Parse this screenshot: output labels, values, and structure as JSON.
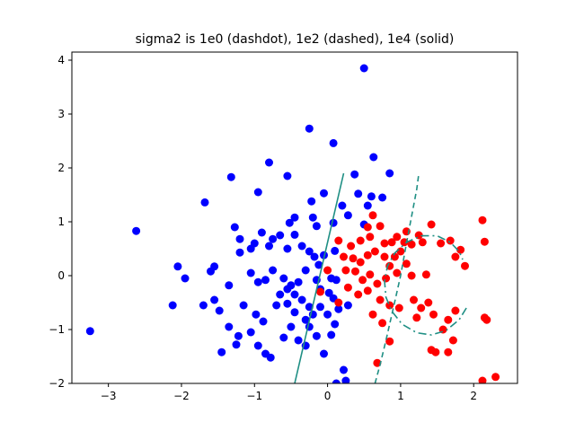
{
  "chart_data": {
    "type": "scatter",
    "title": "sigma2 is 1e0 (dashdot), 1e2 (dashed), 1e4 (solid)",
    "xlabel": "",
    "ylabel": "",
    "xlim": [
      -3.5,
      2.6
    ],
    "ylim": [
      -2.0,
      4.15
    ],
    "x_ticks": [
      -3,
      -2,
      -1,
      0,
      1,
      2
    ],
    "y_ticks": [
      -2,
      -1,
      0,
      1,
      2,
      3,
      4
    ],
    "grid": false,
    "series": [
      {
        "color": "#0000ff",
        "points": [
          [
            0.5,
            3.85
          ],
          [
            -0.25,
            2.73
          ],
          [
            0.08,
            2.46
          ],
          [
            0.63,
            2.2
          ],
          [
            -0.8,
            2.1
          ],
          [
            -0.55,
            1.85
          ],
          [
            0.37,
            1.88
          ],
          [
            0.85,
            1.9
          ],
          [
            -1.32,
            1.83
          ],
          [
            -0.95,
            1.55
          ],
          [
            -1.68,
            1.36
          ],
          [
            0.2,
            1.3
          ],
          [
            0.55,
            1.3
          ],
          [
            0.42,
            1.52
          ],
          [
            0.6,
            1.47
          ],
          [
            0.75,
            1.45
          ],
          [
            -0.05,
            1.53
          ],
          [
            -0.22,
            1.38
          ],
          [
            0.28,
            1.12
          ],
          [
            0.08,
            0.98
          ],
          [
            -0.2,
            1.08
          ],
          [
            -0.45,
            1.08
          ],
          [
            -0.52,
            0.98
          ],
          [
            -0.15,
            0.92
          ],
          [
            0.5,
            0.95
          ],
          [
            -1.27,
            0.9
          ],
          [
            -0.9,
            0.8
          ],
          [
            -0.65,
            0.75
          ],
          [
            -0.45,
            0.76
          ],
          [
            -0.75,
            0.68
          ],
          [
            -1.2,
            0.68
          ],
          [
            -1.0,
            0.6
          ],
          [
            -1.05,
            0.5
          ],
          [
            -1.2,
            0.43
          ],
          [
            -0.8,
            0.55
          ],
          [
            -0.55,
            0.5
          ],
          [
            -0.35,
            0.55
          ],
          [
            -0.25,
            0.45
          ],
          [
            -0.18,
            0.35
          ],
          [
            -0.12,
            0.2
          ],
          [
            -0.05,
            0.38
          ],
          [
            0.1,
            0.46
          ],
          [
            -2.62,
            0.83
          ],
          [
            -1.55,
            0.17
          ],
          [
            -2.05,
            0.17
          ],
          [
            -1.6,
            0.08
          ],
          [
            -1.95,
            -0.05
          ],
          [
            -1.35,
            -0.18
          ],
          [
            -0.95,
            -0.12
          ],
          [
            -0.85,
            -0.08
          ],
          [
            -0.6,
            -0.05
          ],
          [
            -0.5,
            -0.18
          ],
          [
            -0.4,
            -0.12
          ],
          [
            -0.3,
            0.1
          ],
          [
            -0.15,
            -0.08
          ],
          [
            0.05,
            -0.05
          ],
          [
            0.12,
            -0.08
          ],
          [
            -1.05,
            0.05
          ],
          [
            -0.75,
            0.1
          ],
          [
            -0.65,
            -0.35
          ],
          [
            -0.45,
            -0.35
          ],
          [
            -0.35,
            -0.45
          ],
          [
            -0.25,
            -0.58
          ],
          [
            -0.1,
            -0.25
          ],
          [
            0.02,
            -0.32
          ],
          [
            0.08,
            -0.42
          ],
          [
            0.15,
            -0.62
          ],
          [
            0.28,
            -0.55
          ],
          [
            -1.55,
            -0.45
          ],
          [
            -1.48,
            -0.65
          ],
          [
            -1.15,
            -0.55
          ],
          [
            -0.98,
            -0.72
          ],
          [
            -0.88,
            -0.85
          ],
          [
            -0.7,
            -0.55
          ],
          [
            -0.55,
            -0.52
          ],
          [
            -0.45,
            -0.68
          ],
          [
            -0.3,
            -0.82
          ],
          [
            -0.2,
            -0.72
          ],
          [
            -0.1,
            -0.58
          ],
          [
            0.0,
            -0.72
          ],
          [
            0.1,
            -0.9
          ],
          [
            0.05,
            -1.1
          ],
          [
            -1.35,
            -0.95
          ],
          [
            -1.22,
            -1.12
          ],
          [
            -1.05,
            -1.05
          ],
          [
            -0.95,
            -1.3
          ],
          [
            -0.85,
            -1.45
          ],
          [
            -0.6,
            -1.15
          ],
          [
            -0.5,
            -0.95
          ],
          [
            -0.4,
            -1.2
          ],
          [
            -0.3,
            -1.3
          ],
          [
            -0.25,
            -0.95
          ],
          [
            -0.15,
            -1.12
          ],
          [
            -1.45,
            -1.42
          ],
          [
            -0.78,
            -1.52
          ],
          [
            -0.05,
            -1.45
          ],
          [
            0.22,
            -1.75
          ],
          [
            0.12,
            -2.0
          ],
          [
            0.25,
            -1.95
          ],
          [
            -2.12,
            -0.55
          ],
          [
            -3.25,
            -1.03
          ],
          [
            -1.7,
            -0.55
          ],
          [
            -1.25,
            -1.28
          ],
          [
            -0.55,
            -0.25
          ]
        ]
      },
      {
        "color": "#ff0000",
        "points": [
          [
            0.62,
            1.12
          ],
          [
            0.55,
            0.9
          ],
          [
            0.72,
            0.92
          ],
          [
            1.08,
            0.82
          ],
          [
            1.25,
            0.75
          ],
          [
            1.42,
            0.95
          ],
          [
            0.15,
            0.65
          ],
          [
            0.32,
            0.55
          ],
          [
            0.45,
            0.65
          ],
          [
            0.58,
            0.72
          ],
          [
            0.78,
            0.6
          ],
          [
            0.88,
            0.62
          ],
          [
            0.95,
            0.72
          ],
          [
            1.05,
            0.62
          ],
          [
            1.15,
            0.58
          ],
          [
            1.3,
            0.62
          ],
          [
            1.55,
            0.6
          ],
          [
            1.68,
            0.65
          ],
          [
            1.82,
            0.48
          ],
          [
            0.22,
            0.35
          ],
          [
            0.35,
            0.32
          ],
          [
            0.45,
            0.25
          ],
          [
            0.55,
            0.38
          ],
          [
            0.65,
            0.45
          ],
          [
            0.78,
            0.35
          ],
          [
            0.92,
            0.35
          ],
          [
            1.0,
            0.45
          ],
          [
            1.08,
            0.22
          ],
          [
            0.85,
            0.18
          ],
          [
            0.95,
            0.05
          ],
          [
            0.8,
            -0.05
          ],
          [
            0.68,
            -0.15
          ],
          [
            0.58,
            0.02
          ],
          [
            0.48,
            -0.08
          ],
          [
            0.38,
            0.08
          ],
          [
            0.25,
            0.1
          ],
          [
            0.0,
            0.1
          ],
          [
            1.75,
            0.35
          ],
          [
            1.88,
            0.18
          ],
          [
            2.12,
            1.03
          ],
          [
            2.15,
            0.63
          ],
          [
            0.28,
            -0.22
          ],
          [
            0.42,
            -0.35
          ],
          [
            0.55,
            -0.28
          ],
          [
            0.72,
            -0.45
          ],
          [
            0.85,
            -0.55
          ],
          [
            0.98,
            -0.6
          ],
          [
            1.18,
            -0.45
          ],
          [
            1.28,
            -0.6
          ],
          [
            1.38,
            -0.5
          ],
          [
            1.45,
            -0.72
          ],
          [
            1.65,
            -0.82
          ],
          [
            1.75,
            -0.65
          ],
          [
            1.22,
            -0.78
          ],
          [
            1.15,
            0.0
          ],
          [
            1.35,
            0.02
          ],
          [
            0.62,
            -0.72
          ],
          [
            0.75,
            -0.88
          ],
          [
            0.85,
            -1.22
          ],
          [
            0.68,
            -1.62
          ],
          [
            1.58,
            -1.0
          ],
          [
            1.72,
            -1.2
          ],
          [
            1.42,
            -1.38
          ],
          [
            1.48,
            -1.42
          ],
          [
            1.65,
            -1.42
          ],
          [
            2.15,
            -0.78
          ],
          [
            2.18,
            -0.82
          ],
          [
            2.12,
            -1.95
          ],
          [
            2.3,
            -1.88
          ],
          [
            -0.1,
            -0.3
          ],
          [
            0.15,
            -0.5
          ]
        ]
      }
    ],
    "boundaries": [
      {
        "label": "1e4",
        "style": "solid",
        "color": "#1f8f84",
        "points": [
          [
            -0.45,
            -2.0
          ],
          [
            0.22,
            1.9
          ]
        ]
      },
      {
        "label": "1e2",
        "style": "dashed",
        "color": "#1f8f84",
        "points": [
          [
            0.65,
            -2.0
          ],
          [
            0.72,
            -1.65
          ],
          [
            0.8,
            -1.2
          ],
          [
            0.9,
            -0.6
          ],
          [
            1.0,
            0.0
          ],
          [
            1.08,
            0.6
          ],
          [
            1.15,
            1.1
          ],
          [
            1.22,
            1.6
          ],
          [
            1.25,
            1.9
          ]
        ]
      },
      {
        "label": "1e0",
        "style": "dashdot",
        "color": "#1f8f84",
        "points": [
          [
            1.9,
            -0.6
          ],
          [
            1.8,
            -0.82
          ],
          [
            1.62,
            -1.02
          ],
          [
            1.42,
            -1.1
          ],
          [
            1.22,
            -1.06
          ],
          [
            1.02,
            -0.9
          ],
          [
            0.88,
            -0.66
          ],
          [
            0.8,
            -0.4
          ],
          [
            0.78,
            -0.1
          ],
          [
            0.82,
            0.18
          ],
          [
            0.92,
            0.42
          ],
          [
            1.08,
            0.62
          ],
          [
            1.28,
            0.74
          ],
          [
            1.5,
            0.74
          ],
          [
            1.68,
            0.62
          ],
          [
            1.8,
            0.45
          ],
          [
            1.85,
            0.3
          ]
        ]
      }
    ]
  }
}
